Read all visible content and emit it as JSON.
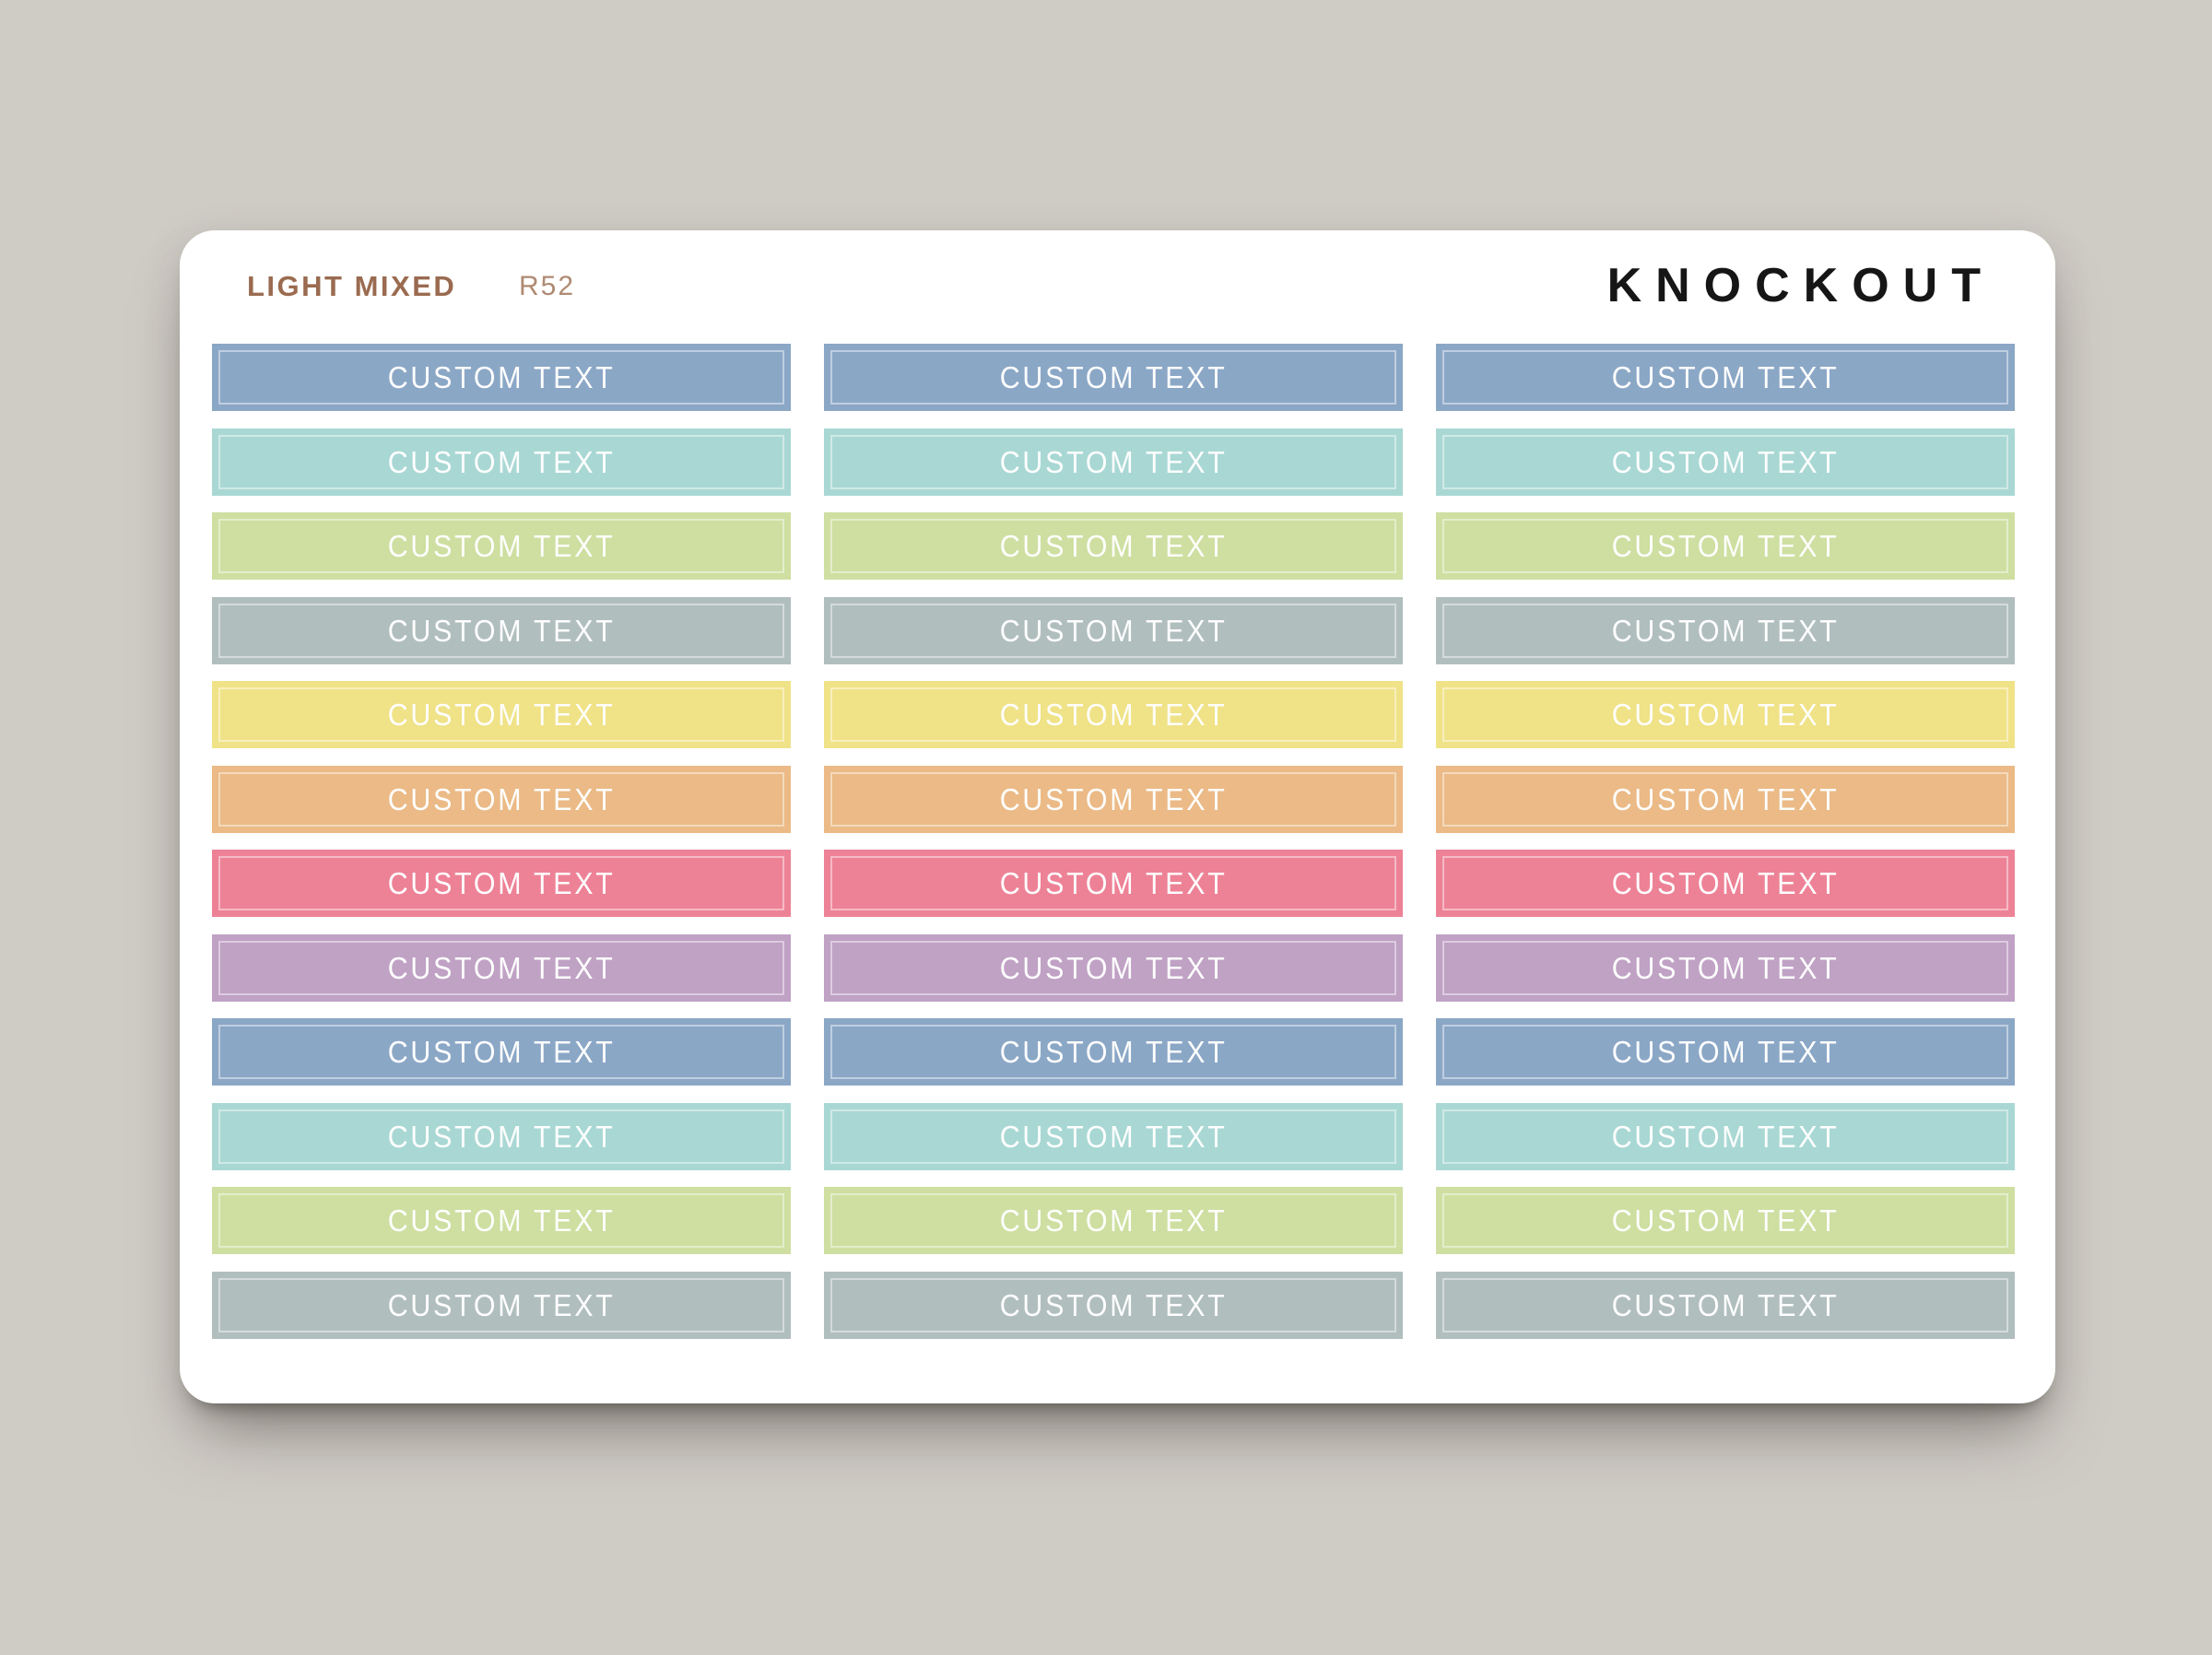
{
  "page": {
    "background_color": "#CFCBC5"
  },
  "sheet": {
    "header": {
      "collection_name": "LIGHT MIXED",
      "product_code": "R52",
      "brand": "KNOCKOUT",
      "collection_color": "#9A6B50",
      "product_code_color": "#AE8A72",
      "brand_color": "#161616"
    },
    "sticker_label": "CUSTOM TEXT",
    "sticker_text_color": "#FEFEFE",
    "palette": {
      "blue": "#8BA7C6",
      "teal": "#A9D8D4",
      "green": "#CEDFA1",
      "gray": "#B1BEBE",
      "yellow": "#F0E287",
      "orange": "#EBBA86",
      "pink": "#ED8296",
      "purple": "#C0A2C5"
    },
    "grid": {
      "columns": 3,
      "rows": 12,
      "row_colors": [
        "blue",
        "teal",
        "green",
        "gray",
        "yellow",
        "orange",
        "pink",
        "purple",
        "blue",
        "teal",
        "green",
        "gray"
      ]
    }
  }
}
